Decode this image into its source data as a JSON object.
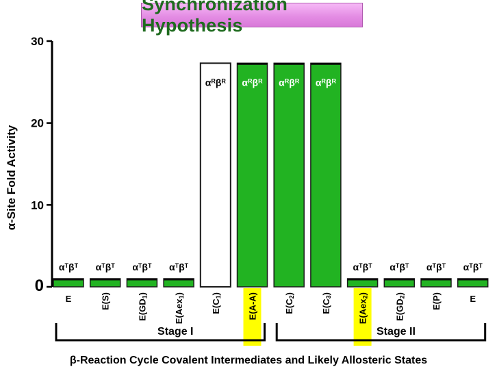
{
  "chart_data": {
    "type": "bar",
    "title": "Synchronization Hypothesis",
    "ylabel": "α-Site Fold Activity",
    "xlabel": "β-Reaction Cycle Covalent Intermediates and Likely Allosteric States",
    "ylim": [
      0,
      30
    ],
    "yticks": [
      "0",
      "10",
      "20",
      "30"
    ],
    "categories": [
      {
        "main": "E",
        "sub": ""
      },
      {
        "main": "E(S)",
        "sub": ""
      },
      {
        "main": "E(GD",
        "sub": "1",
        "tail": ")"
      },
      {
        "main": "E(Aex",
        "sub": "1",
        "tail": ")"
      },
      {
        "main": "E(C",
        "sub": "1",
        "tail": ")"
      },
      {
        "main": "E(A-A)",
        "sub": "",
        "highlight": true
      },
      {
        "main": "E(C",
        "sub": "2",
        "tail": ")"
      },
      {
        "main": "E(C",
        "sub": "3",
        "tail": ")"
      },
      {
        "main": "E(Aex",
        "sub": "2",
        "tail": ")",
        "highlight": true
      },
      {
        "main": "E(GD",
        "sub": "2",
        "tail": ")"
      },
      {
        "main": "E(P)",
        "sub": ""
      },
      {
        "main": "E",
        "sub": ""
      }
    ],
    "values": [
      1,
      1,
      1,
      1,
      27.3,
      27.3,
      27.3,
      27.3,
      1,
      1,
      1,
      1
    ],
    "bar_labels": [
      "αTβT",
      "αTβT",
      "αTβT",
      "αTβT",
      "αRβR",
      "αRβR",
      "αRβR",
      "αRβR",
      "αTβT",
      "αTβT",
      "αTβT",
      "αTβT"
    ],
    "bar_fill": [
      "green",
      "green",
      "green",
      "green",
      "white",
      "green",
      "green",
      "green",
      "green",
      "green",
      "green",
      "green"
    ],
    "stages": [
      {
        "label": "Stage I",
        "from": 0,
        "to": 5
      },
      {
        "label": "Stage II",
        "from": 6,
        "to": 11
      }
    ],
    "colors": {
      "bar_green": "#22b322",
      "bar_border": "#1a1a1a",
      "label_highlight": "#ffff00",
      "title_text": "#1f6b1f",
      "title_bg": "#e48de4"
    },
    "grid": false,
    "legend": "none"
  }
}
